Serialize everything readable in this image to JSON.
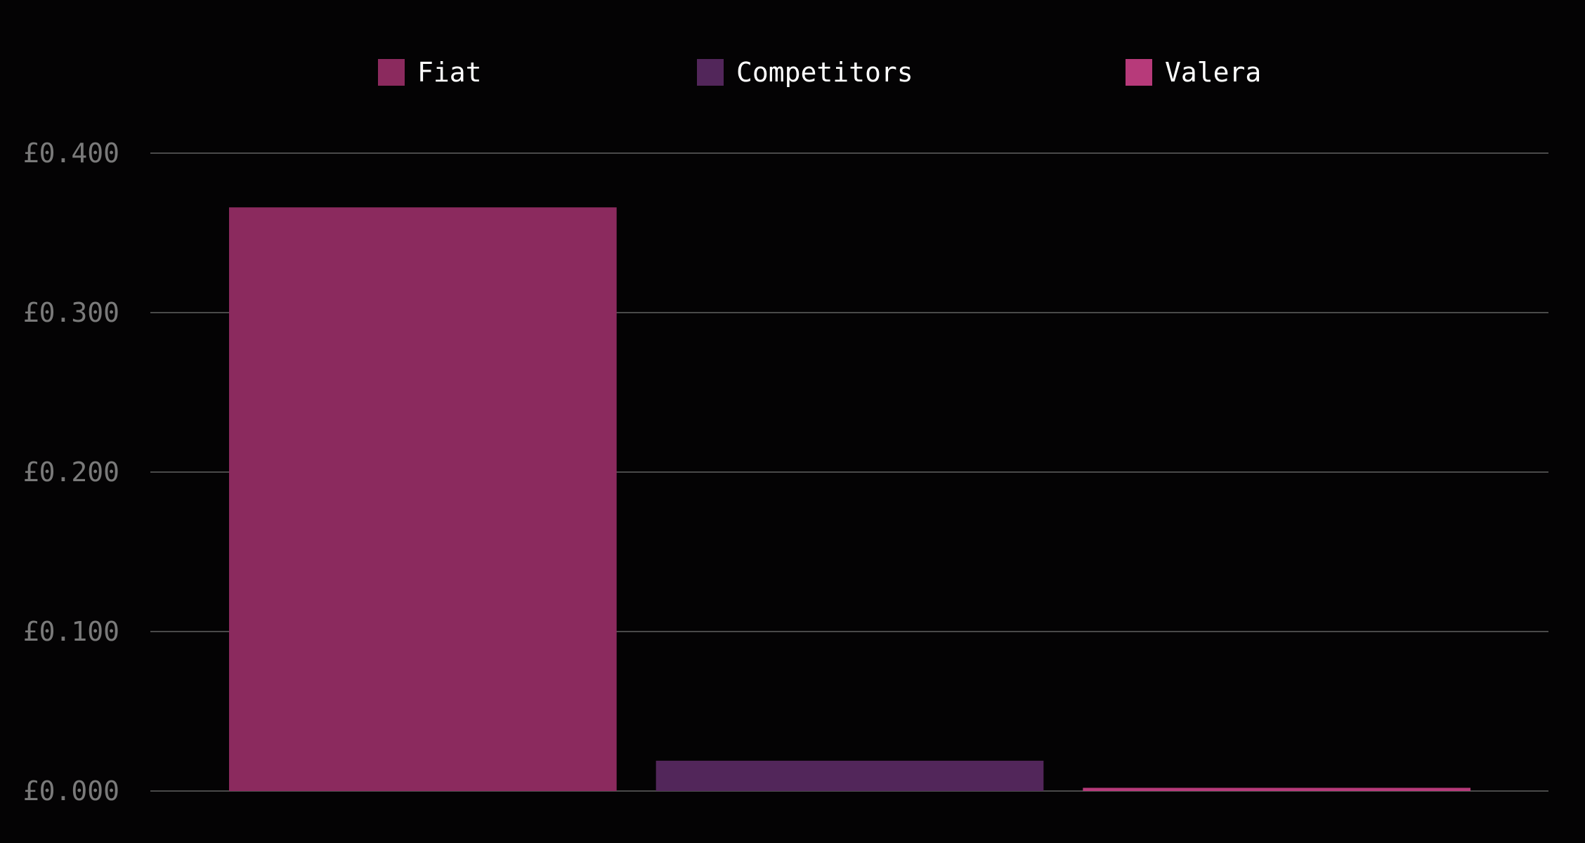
{
  "chart_data": {
    "type": "bar",
    "categories": [
      "Fiat",
      "Competitors",
      "Valera"
    ],
    "series": [
      {
        "name": "Fiat",
        "values": [
          0.366,
          null,
          null
        ]
      },
      {
        "name": "Competitors",
        "values": [
          null,
          0.019,
          null
        ]
      },
      {
        "name": "Valera",
        "values": [
          null,
          null,
          0.002
        ]
      }
    ],
    "colors": [
      "#8b2a5e",
      "#52265a",
      "#b73a7a"
    ],
    "ylim": [
      0,
      0.4
    ],
    "yticks": [
      0.0,
      0.1,
      0.2,
      0.3,
      0.4
    ],
    "ytick_labels": [
      "£0.000",
      "£0.100",
      "£0.200",
      "£0.300",
      "£0.400"
    ],
    "legend_position": "top-center",
    "grid": true
  }
}
